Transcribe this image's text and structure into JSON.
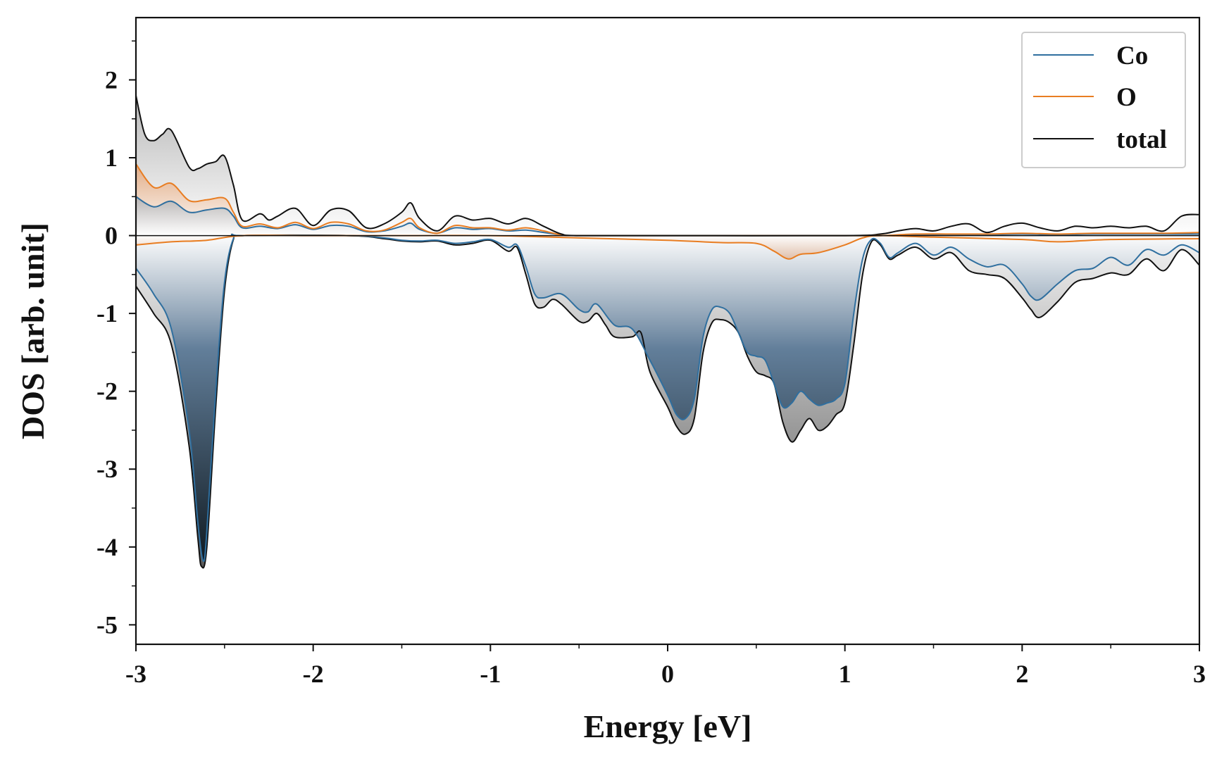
{
  "chart_data": {
    "type": "area",
    "xlabel": "Energy [eV]",
    "ylabel": "DOS [arb. unit]",
    "xlim": [
      -3,
      3
    ],
    "ylim": [
      -5.25,
      2.8
    ],
    "x_ticks": [
      "-3",
      "-2",
      "-1",
      "0",
      "1",
      "2",
      "3"
    ],
    "y_ticks": [
      "2",
      "1",
      "0",
      "-1",
      "-2",
      "-3",
      "-4",
      "-5"
    ],
    "legend_position": "top-right",
    "grid": false,
    "legend": [
      "Co",
      "O",
      "total"
    ],
    "colors": {
      "Co": "#2f6f9f",
      "O": "#e87d22",
      "total": "#111111"
    },
    "series": [
      {
        "name": "Co",
        "spin": "up",
        "x": [
          -3,
          -2.9,
          -2.8,
          -2.7,
          -2.6,
          -2.5,
          -2.45,
          -2.4,
          -2.3,
          -2.2,
          -2.1,
          -2.0,
          -1.9,
          -1.8,
          -1.7,
          -1.6,
          -1.5,
          -1.45,
          -1.4,
          -1.3,
          -1.2,
          -1.1,
          -1.0,
          -0.9,
          -0.8,
          -0.7,
          -0.6,
          -0.5,
          0,
          1.0,
          1.2,
          1.4,
          1.6,
          1.8,
          2.0,
          2.2,
          2.4,
          2.6,
          2.8,
          3.0
        ],
        "values": [
          0.5,
          0.37,
          0.44,
          0.3,
          0.33,
          0.35,
          0.25,
          0.1,
          0.12,
          0.09,
          0.14,
          0.08,
          0.13,
          0.12,
          0.05,
          0.06,
          0.12,
          0.16,
          0.08,
          0.03,
          0.1,
          0.08,
          0.09,
          0.06,
          0.07,
          0.04,
          0.01,
          0,
          0,
          0,
          0,
          0.01,
          0.01,
          0.01,
          0.02,
          0.01,
          0.02,
          0.02,
          0.02,
          0.02
        ]
      },
      {
        "name": "O",
        "spin": "up",
        "x": [
          -3,
          -2.9,
          -2.8,
          -2.7,
          -2.6,
          -2.5,
          -2.45,
          -2.4,
          -2.3,
          -2.2,
          -2.1,
          -2.0,
          -1.9,
          -1.8,
          -1.7,
          -1.6,
          -1.5,
          -1.45,
          -1.4,
          -1.3,
          -1.2,
          -1.1,
          -1.0,
          -0.9,
          -0.8,
          -0.7,
          -0.6,
          -0.5,
          0,
          1.0,
          1.2,
          1.4,
          1.6,
          1.8,
          2.0,
          2.2,
          2.4,
          2.6,
          2.8,
          3.0
        ],
        "values": [
          0.92,
          0.62,
          0.67,
          0.45,
          0.46,
          0.48,
          0.3,
          0.12,
          0.15,
          0.1,
          0.17,
          0.09,
          0.17,
          0.15,
          0.06,
          0.07,
          0.17,
          0.22,
          0.1,
          0.03,
          0.13,
          0.1,
          0.1,
          0.07,
          0.1,
          0.06,
          0.01,
          0,
          0,
          0,
          0,
          0.02,
          0.02,
          0.02,
          0.03,
          0.02,
          0.03,
          0.03,
          0.03,
          0.04
        ]
      },
      {
        "name": "total",
        "spin": "up",
        "x": [
          -3,
          -2.95,
          -2.9,
          -2.85,
          -2.8,
          -2.7,
          -2.65,
          -2.6,
          -2.55,
          -2.5,
          -2.45,
          -2.4,
          -2.3,
          -2.25,
          -2.2,
          -2.1,
          -2.0,
          -1.9,
          -1.8,
          -1.7,
          -1.6,
          -1.5,
          -1.45,
          -1.4,
          -1.3,
          -1.2,
          -1.1,
          -1.0,
          -0.9,
          -0.8,
          -0.7,
          -0.6,
          -0.5,
          0,
          1.0,
          1.2,
          1.3,
          1.4,
          1.5,
          1.6,
          1.7,
          1.8,
          1.9,
          2.0,
          2.1,
          2.2,
          2.3,
          2.4,
          2.5,
          2.6,
          2.7,
          2.8,
          2.9,
          3.0
        ],
        "values": [
          1.8,
          1.3,
          1.22,
          1.3,
          1.35,
          0.88,
          0.86,
          0.92,
          0.95,
          1.02,
          0.65,
          0.2,
          0.28,
          0.2,
          0.25,
          0.35,
          0.13,
          0.33,
          0.32,
          0.1,
          0.15,
          0.3,
          0.42,
          0.22,
          0.06,
          0.25,
          0.2,
          0.22,
          0.15,
          0.22,
          0.12,
          0.02,
          0,
          0,
          0,
          0.02,
          0.06,
          0.09,
          0.06,
          0.12,
          0.15,
          0.04,
          0.12,
          0.16,
          0.1,
          0.06,
          0.12,
          0.1,
          0.12,
          0.1,
          0.12,
          0.06,
          0.25,
          0.27
        ]
      },
      {
        "name": "Co",
        "spin": "down",
        "x": [
          -3,
          -2.9,
          -2.8,
          -2.7,
          -2.65,
          -2.62,
          -2.6,
          -2.55,
          -2.5,
          -2.45,
          -2.4,
          -1.8,
          -1.6,
          -1.5,
          -1.4,
          -1.3,
          -1.2,
          -1.1,
          -1.0,
          -0.9,
          -0.85,
          -0.8,
          -0.75,
          -0.7,
          -0.6,
          -0.5,
          -0.45,
          -0.4,
          -0.3,
          -0.2,
          -0.1,
          0.0,
          0.05,
          0.1,
          0.15,
          0.2,
          0.25,
          0.3,
          0.35,
          0.4,
          0.45,
          0.5,
          0.55,
          0.6,
          0.65,
          0.7,
          0.75,
          0.8,
          0.85,
          0.9,
          0.95,
          1.0,
          1.05,
          1.1,
          1.15,
          1.2,
          1.25,
          1.3,
          1.4,
          1.5,
          1.6,
          1.7,
          1.8,
          1.9,
          2.0,
          2.05,
          2.1,
          2.2,
          2.3,
          2.4,
          2.5,
          2.6,
          2.7,
          2.8,
          2.9,
          3.0
        ],
        "values": [
          -0.42,
          -0.75,
          -1.2,
          -2.5,
          -3.7,
          -4.18,
          -3.8,
          -2.0,
          -0.6,
          -0.04,
          0,
          0,
          -0.03,
          -0.06,
          -0.07,
          -0.06,
          -0.1,
          -0.08,
          -0.05,
          -0.15,
          -0.12,
          -0.4,
          -0.75,
          -0.8,
          -0.75,
          -0.95,
          -0.98,
          -0.88,
          -1.15,
          -1.2,
          -1.6,
          -2.05,
          -2.3,
          -2.35,
          -2.1,
          -1.3,
          -0.95,
          -0.92,
          -1.0,
          -1.25,
          -1.5,
          -1.55,
          -1.6,
          -1.9,
          -2.2,
          -2.15,
          -2.0,
          -2.1,
          -2.18,
          -2.15,
          -2.1,
          -1.9,
          -1.0,
          -0.3,
          -0.05,
          -0.1,
          -0.28,
          -0.22,
          -0.1,
          -0.25,
          -0.15,
          -0.3,
          -0.4,
          -0.38,
          -0.62,
          -0.78,
          -0.82,
          -0.62,
          -0.45,
          -0.42,
          -0.28,
          -0.38,
          -0.18,
          -0.25,
          -0.12,
          -0.22
        ]
      },
      {
        "name": "O",
        "spin": "down",
        "x": [
          -3,
          -2.8,
          -2.6,
          -2.4,
          -2.0,
          -1.5,
          -1.0,
          -0.5,
          0,
          0.3,
          0.5,
          0.6,
          0.68,
          0.75,
          0.85,
          1.0,
          1.1,
          1.2,
          1.5,
          2.0,
          2.2,
          2.5,
          3.0
        ],
        "values": [
          -0.12,
          -0.08,
          -0.06,
          0,
          0,
          0,
          0,
          -0.03,
          -0.06,
          -0.09,
          -0.1,
          -0.2,
          -0.3,
          -0.24,
          -0.22,
          -0.12,
          -0.03,
          0,
          -0.02,
          -0.05,
          -0.08,
          -0.05,
          -0.04
        ]
      },
      {
        "name": "total",
        "spin": "down",
        "x": [
          -3,
          -2.9,
          -2.8,
          -2.7,
          -2.65,
          -2.63,
          -2.6,
          -2.55,
          -2.5,
          -2.45,
          -2.4,
          -1.8,
          -1.6,
          -1.5,
          -1.4,
          -1.3,
          -1.2,
          -1.1,
          -1.0,
          -0.9,
          -0.85,
          -0.8,
          -0.75,
          -0.7,
          -0.65,
          -0.6,
          -0.5,
          -0.45,
          -0.4,
          -0.35,
          -0.3,
          -0.2,
          -0.15,
          -0.1,
          0.0,
          0.05,
          0.1,
          0.15,
          0.2,
          0.25,
          0.3,
          0.35,
          0.4,
          0.45,
          0.5,
          0.55,
          0.6,
          0.65,
          0.7,
          0.75,
          0.8,
          0.85,
          0.9,
          0.95,
          1.0,
          1.05,
          1.1,
          1.15,
          1.2,
          1.25,
          1.3,
          1.4,
          1.5,
          1.6,
          1.7,
          1.8,
          1.9,
          2.0,
          2.05,
          2.1,
          2.2,
          2.3,
          2.4,
          2.5,
          2.6,
          2.7,
          2.8,
          2.9,
          3.0
        ],
        "values": [
          -0.65,
          -1.0,
          -1.4,
          -2.7,
          -3.9,
          -4.25,
          -4.0,
          -2.2,
          -0.7,
          -0.05,
          0,
          0,
          -0.04,
          -0.07,
          -0.08,
          -0.07,
          -0.12,
          -0.1,
          -0.06,
          -0.2,
          -0.15,
          -0.5,
          -0.88,
          -0.92,
          -0.82,
          -0.88,
          -1.1,
          -1.1,
          -1.0,
          -1.15,
          -1.3,
          -1.3,
          -1.25,
          -1.75,
          -2.2,
          -2.45,
          -2.55,
          -2.35,
          -1.5,
          -1.12,
          -1.08,
          -1.12,
          -1.25,
          -1.55,
          -1.75,
          -1.8,
          -1.9,
          -2.4,
          -2.65,
          -2.5,
          -2.35,
          -2.5,
          -2.45,
          -2.3,
          -2.15,
          -1.4,
          -0.5,
          -0.08,
          -0.12,
          -0.3,
          -0.25,
          -0.15,
          -0.3,
          -0.22,
          -0.45,
          -0.5,
          -0.55,
          -0.8,
          -0.95,
          -1.05,
          -0.85,
          -0.6,
          -0.55,
          -0.48,
          -0.5,
          -0.3,
          -0.45,
          -0.18,
          -0.38
        ]
      }
    ]
  }
}
